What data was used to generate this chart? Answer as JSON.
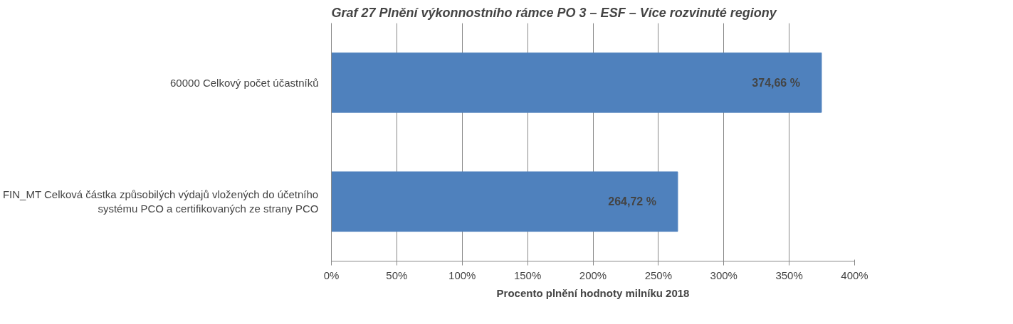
{
  "chart_data": {
    "type": "bar",
    "orientation": "horizontal",
    "title": "Graf 27 Plnění výkonnostního rámce PO 3 – ESF – Více rozvinuté regiony",
    "categories": [
      "60000 Celkový počet účastníků",
      "FIN_MT Celková částka způsobilých výdajů vložených do účetního systému PCO a certifikovaných ze strany PCO"
    ],
    "values": [
      3.7466,
      2.6472
    ],
    "value_labels": [
      "374,66 %",
      "264,72 %"
    ],
    "color": "#4f81bd",
    "xlabel": "Procento plnění hodnoty milníku 2018",
    "xlim": [
      0,
      4
    ],
    "xticks": [
      {
        "value": 0,
        "label": "0%"
      },
      {
        "value": 0.5,
        "label": "50%"
      },
      {
        "value": 1,
        "label": "100%"
      },
      {
        "value": 1.5,
        "label": "150%"
      },
      {
        "value": 2,
        "label": "200%"
      },
      {
        "value": 2.5,
        "label": "250%"
      },
      {
        "value": 3,
        "label": "300%"
      },
      {
        "value": 3.5,
        "label": "350%"
      },
      {
        "value": 4,
        "label": "400%"
      }
    ],
    "grid": "x"
  }
}
